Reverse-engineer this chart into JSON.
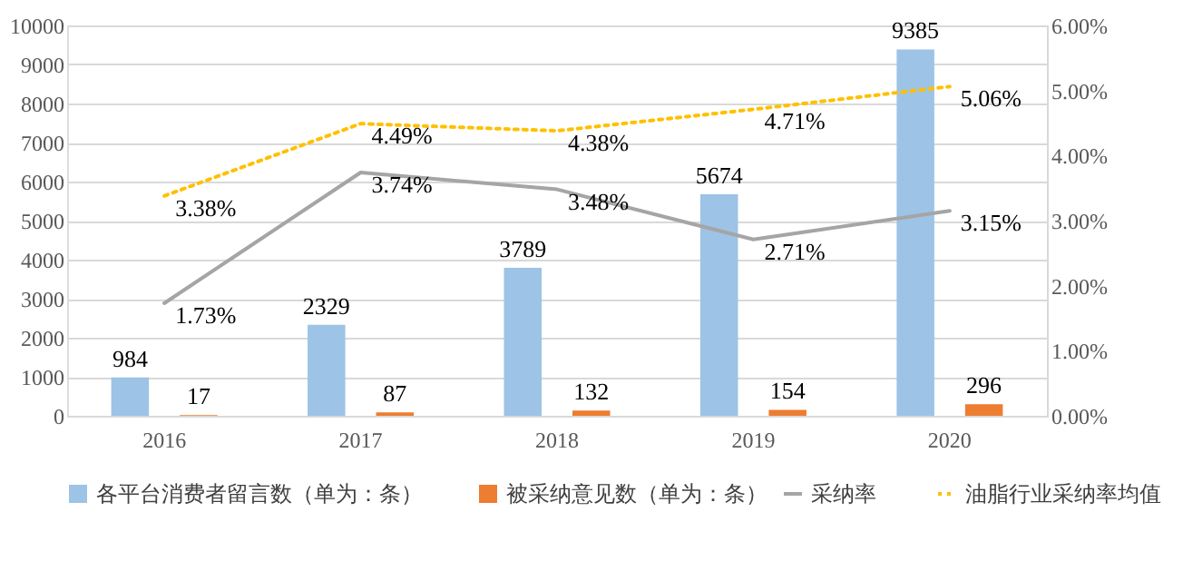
{
  "chart_data": {
    "type": "bar",
    "categories": [
      "2016",
      "2017",
      "2018",
      "2019",
      "2020"
    ],
    "series": [
      {
        "name": "各平台消费者留言数（单为：条）",
        "color": "#9dc3e6",
        "values": [
          984,
          2329,
          3789,
          5674,
          9385
        ],
        "value_labels": [
          "984",
          "2329",
          "3789",
          "5674",
          "9385"
        ]
      },
      {
        "name": "被采纳意见数（单为：条）",
        "color": "#ed7d31",
        "values": [
          17,
          87,
          132,
          154,
          296
        ],
        "value_labels": [
          "17",
          "87",
          "132",
          "154",
          "296"
        ]
      },
      {
        "name": "采纳率",
        "type": "line",
        "axis": "y2",
        "color": "#a5a5a5",
        "line_style": "solid",
        "values": [
          1.73,
          3.74,
          3.48,
          2.71,
          3.15
        ],
        "value_labels": [
          "1.73%",
          "3.74%",
          "3.48%",
          "2.71%",
          "3.15%"
        ]
      },
      {
        "name": "油脂行业采纳率均值",
        "type": "line",
        "axis": "y2",
        "color": "#ffc000",
        "line_style": "dotted",
        "values": [
          3.38,
          4.49,
          4.38,
          4.71,
          5.06
        ],
        "value_labels": [
          "3.38%",
          "4.49%",
          "4.38%",
          "4.71%",
          "5.06%"
        ]
      }
    ],
    "ylim": [
      0,
      10000
    ],
    "yticks": [
      0,
      1000,
      2000,
      3000,
      4000,
      5000,
      6000,
      7000,
      8000,
      9000,
      10000
    ],
    "y2lim": [
      0,
      6
    ],
    "y2ticks": [
      {
        "value": 0,
        "label": "0.00%"
      },
      {
        "value": 1,
        "label": "1.00%"
      },
      {
        "value": 2,
        "label": "2.00%"
      },
      {
        "value": 3,
        "label": "3.00%"
      },
      {
        "value": 4,
        "label": "4.00%"
      },
      {
        "value": 5,
        "label": "5.00%"
      },
      {
        "value": 6,
        "label": "6.00%"
      }
    ],
    "grid": "y",
    "legend": "bottom",
    "marker": "none"
  }
}
